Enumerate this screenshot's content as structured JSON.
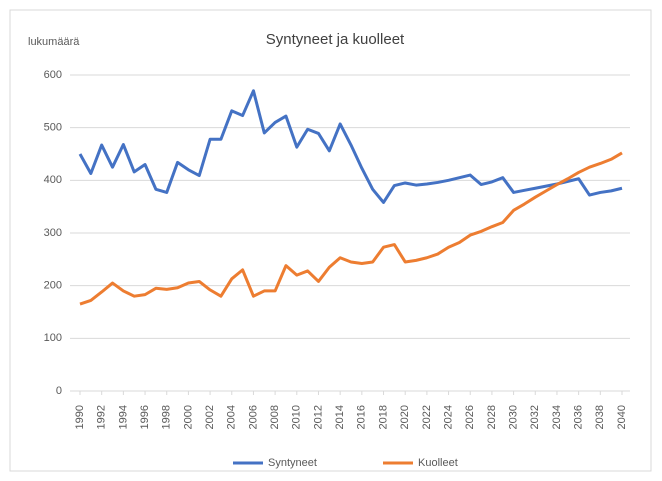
{
  "chart_data": {
    "type": "line",
    "title": "Syntyneet ja kuolleet",
    "y_label": "lukumäärä",
    "x": [
      1990,
      1991,
      1992,
      1993,
      1994,
      1995,
      1996,
      1997,
      1998,
      1999,
      2000,
      2001,
      2002,
      2003,
      2004,
      2005,
      2006,
      2007,
      2008,
      2009,
      2010,
      2011,
      2012,
      2013,
      2014,
      2015,
      2016,
      2017,
      2018,
      2019,
      2020,
      2021,
      2022,
      2023,
      2024,
      2025,
      2026,
      2027,
      2028,
      2029,
      2030,
      2031,
      2032,
      2033,
      2034,
      2035,
      2036,
      2037,
      2038,
      2039,
      2040
    ],
    "series": [
      {
        "name": "Syntyneet",
        "color": "#4472c4",
        "values": [
          450,
          413,
          467,
          425,
          468,
          416,
          430,
          383,
          377,
          434,
          420,
          409,
          478,
          478,
          532,
          523,
          570,
          490,
          510,
          522,
          463,
          497,
          489,
          456,
          507,
          467,
          423,
          383,
          358,
          390,
          395,
          391,
          393,
          396,
          400,
          405,
          410,
          392,
          397,
          405,
          377,
          381,
          385,
          389,
          393,
          398,
          403,
          372,
          377,
          380,
          385
        ]
      },
      {
        "name": "Kuolleet",
        "color": "#ed7d31",
        "values": [
          165,
          172,
          188,
          205,
          190,
          180,
          183,
          195,
          193,
          196,
          205,
          208,
          192,
          180,
          213,
          230,
          180,
          190,
          190,
          238,
          220,
          228,
          208,
          235,
          253,
          245,
          242,
          245,
          273,
          278,
          245,
          248,
          253,
          260,
          273,
          282,
          296,
          303,
          312,
          320,
          343,
          355,
          368,
          380,
          392,
          403,
          415,
          425,
          432,
          440,
          452
        ]
      }
    ],
    "xlim": [
      1990,
      2040
    ],
    "xticks": [
      1990,
      1992,
      1994,
      1996,
      1998,
      2000,
      2002,
      2004,
      2006,
      2008,
      2010,
      2012,
      2014,
      2016,
      2018,
      2020,
      2022,
      2024,
      2026,
      2028,
      2030,
      2032,
      2034,
      2036,
      2038,
      2040
    ],
    "ylim": [
      0,
      600
    ],
    "yticks": [
      0,
      100,
      200,
      300,
      400,
      500,
      600
    ],
    "grid": true,
    "legend": "bottom"
  }
}
